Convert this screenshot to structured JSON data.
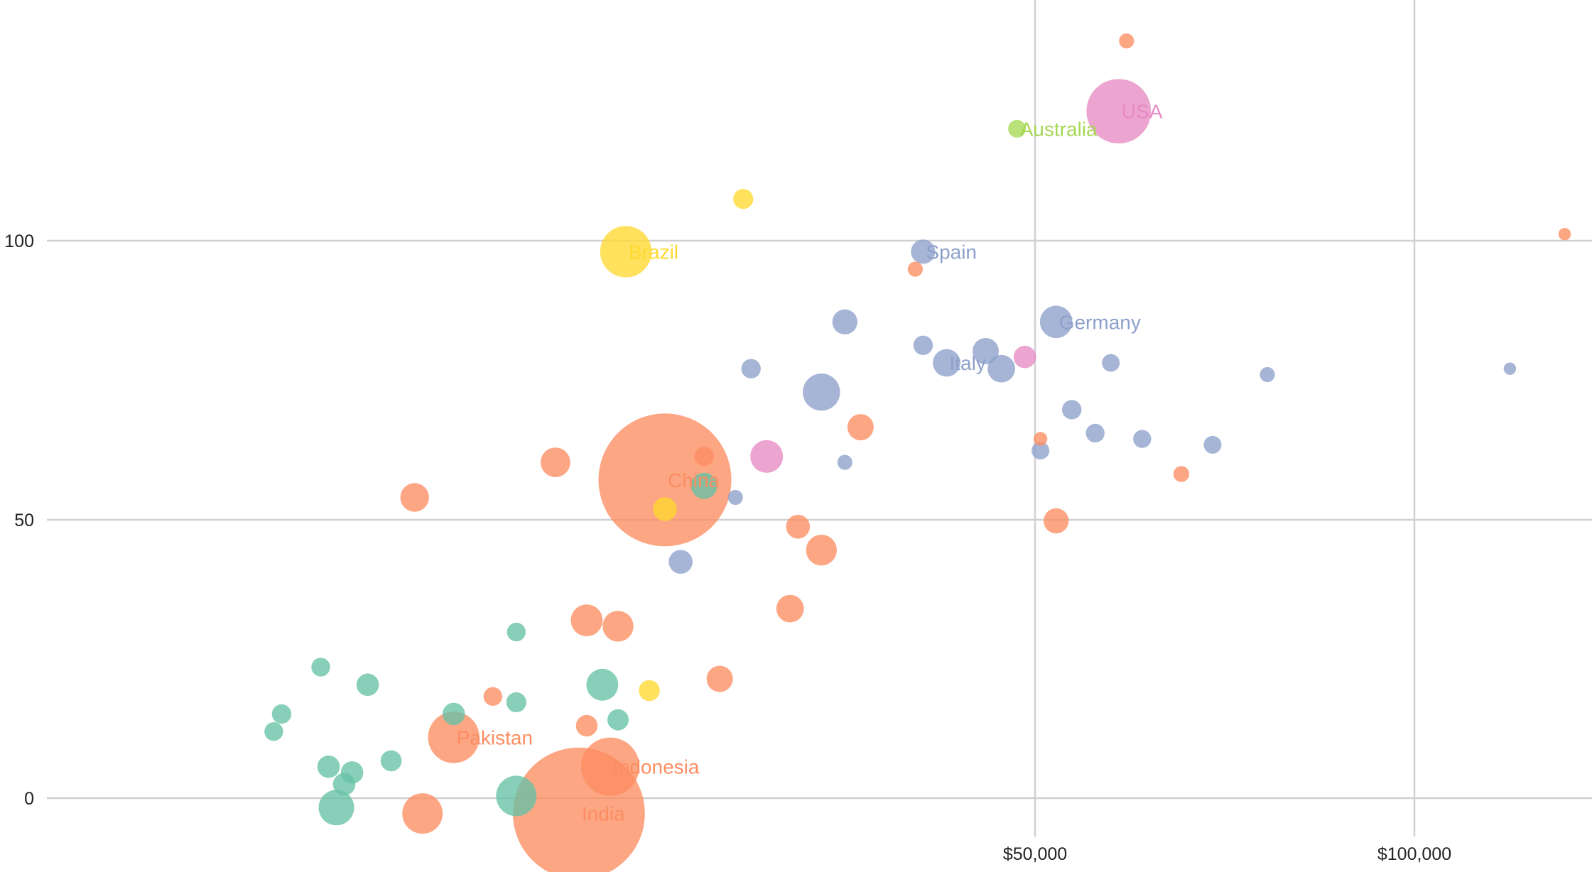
{
  "chart_data": {
    "type": "scatter",
    "x_tick_labels": [
      "$50,000",
      "$100,000"
    ],
    "y_tick_labels": [
      "0",
      "50",
      "100"
    ],
    "x_ticks": [
      50000,
      100000
    ],
    "y_ticks": [
      0,
      50,
      100
    ],
    "xlim": [
      -82000,
      121500
    ],
    "ylim": [
      -6,
      143
    ],
    "grid": true,
    "colors": {
      "africa": "#66c2a5",
      "asia": "#fc8d62",
      "europe": "#8da0cb",
      "americas": "#e78ac3",
      "oceania": "#a6d854",
      "latam": "#ffd92f"
    },
    "points": [
      {
        "x": -8000,
        "y": 4,
        "s": 1380,
        "c": "asia",
        "label": "India"
      },
      {
        "x": 3000,
        "y": 61,
        "s": 1400,
        "c": "asia",
        "label": "China"
      },
      {
        "x": 61000,
        "y": 124,
        "s": 330,
        "c": "americas",
        "label": "USA"
      },
      {
        "x": -24000,
        "y": 17,
        "s": 210,
        "c": "asia",
        "label": "Pakistan"
      },
      {
        "x": -4000,
        "y": 12,
        "s": 270,
        "c": "asia",
        "label": "Indonesia"
      },
      {
        "x": -2000,
        "y": 100,
        "s": 210,
        "c": "latam",
        "label": "Brazil"
      },
      {
        "x": 48000,
        "y": 121,
        "s": 25,
        "c": "oceania",
        "label": "Australia"
      },
      {
        "x": 36000,
        "y": 100,
        "s": 47,
        "c": "europe",
        "label": "Spain"
      },
      {
        "x": 53000,
        "y": 88,
        "s": 83,
        "c": "europe",
        "label": "Germany"
      },
      {
        "x": 39000,
        "y": 81,
        "s": 60,
        "c": "europe",
        "label": "Italy"
      },
      {
        "x": -16000,
        "y": 7,
        "s": 130,
        "c": "africa"
      },
      {
        "x": -28000,
        "y": 4,
        "s": 130,
        "c": "asia"
      },
      {
        "x": -39000,
        "y": 5,
        "s": 100,
        "c": "africa"
      },
      {
        "x": -5000,
        "y": 26,
        "s": 80,
        "c": "africa"
      },
      {
        "x": -7000,
        "y": 37,
        "s": 80,
        "c": "asia"
      },
      {
        "x": -3000,
        "y": 36,
        "s": 75,
        "c": "asia"
      },
      {
        "x": -11000,
        "y": 64,
        "s": 70,
        "c": "asia"
      },
      {
        "x": -29000,
        "y": 58,
        "s": 65,
        "c": "asia"
      },
      {
        "x": 28000,
        "y": 70,
        "s": 55,
        "c": "asia"
      },
      {
        "x": 23000,
        "y": 49,
        "s": 75,
        "c": "asia"
      },
      {
        "x": 19000,
        "y": 39,
        "s": 60,
        "c": "asia"
      },
      {
        "x": 10000,
        "y": 27,
        "s": 55,
        "c": "asia"
      },
      {
        "x": 20000,
        "y": 53,
        "s": 45,
        "c": "asia"
      },
      {
        "x": 53000,
        "y": 54,
        "s": 50,
        "c": "asia"
      },
      {
        "x": 16000,
        "y": 65,
        "s": 85,
        "c": "americas"
      },
      {
        "x": 23000,
        "y": 76,
        "s": 110,
        "c": "europe"
      },
      {
        "x": 26000,
        "y": 88,
        "s": 50,
        "c": "europe"
      },
      {
        "x": 46000,
        "y": 80,
        "s": 60,
        "c": "europe"
      },
      {
        "x": 44000,
        "y": 83,
        "s": 55,
        "c": "europe"
      },
      {
        "x": 49000,
        "y": 82,
        "s": 40,
        "c": "americas"
      },
      {
        "x": 36000,
        "y": 84,
        "s": 30,
        "c": "europe"
      },
      {
        "x": 13000,
        "y": 109,
        "s": 32,
        "c": "latam"
      },
      {
        "x": 8000,
        "y": 60,
        "s": 55,
        "c": "africa"
      },
      {
        "x": 3000,
        "y": 56,
        "s": 45,
        "c": "latam"
      },
      {
        "x": 5000,
        "y": 47,
        "s": 45,
        "c": "europe"
      },
      {
        "x": -35000,
        "y": 26,
        "s": 40,
        "c": "africa"
      },
      {
        "x": -40000,
        "y": 12,
        "s": 40,
        "c": "africa"
      },
      {
        "x": -37000,
        "y": 11,
        "s": 40,
        "c": "africa"
      },
      {
        "x": -38000,
        "y": 9,
        "s": 40,
        "c": "africa"
      },
      {
        "x": -32000,
        "y": 13,
        "s": 35,
        "c": "africa"
      },
      {
        "x": -24000,
        "y": 21,
        "s": 40,
        "c": "africa"
      },
      {
        "x": -16000,
        "y": 23,
        "s": 32,
        "c": "africa"
      },
      {
        "x": -19000,
        "y": 24,
        "s": 28,
        "c": "asia"
      },
      {
        "x": -16000,
        "y": 35,
        "s": 28,
        "c": "africa"
      },
      {
        "x": -7000,
        "y": 19,
        "s": 37,
        "c": "asia"
      },
      {
        "x": -3000,
        "y": 20,
        "s": 36,
        "c": "africa"
      },
      {
        "x": 14000,
        "y": 80,
        "s": 30,
        "c": "europe"
      },
      {
        "x": 60000,
        "y": 81,
        "s": 25,
        "c": "europe"
      },
      {
        "x": 8000,
        "y": 65,
        "s": 30,
        "c": "asia"
      },
      {
        "x": 1000,
        "y": 25,
        "s": 35,
        "c": "latam"
      },
      {
        "x": -46000,
        "y": 21,
        "s": 30,
        "c": "africa"
      },
      {
        "x": -47000,
        "y": 18,
        "s": 28,
        "c": "africa"
      },
      {
        "x": -41000,
        "y": 29,
        "s": 28,
        "c": "africa"
      },
      {
        "x": 55000,
        "y": 73,
        "s": 30,
        "c": "europe"
      },
      {
        "x": 58000,
        "y": 69,
        "s": 28,
        "c": "europe"
      },
      {
        "x": 64000,
        "y": 68,
        "s": 26,
        "c": "europe"
      },
      {
        "x": 51000,
        "y": 66,
        "s": 25,
        "c": "europe"
      },
      {
        "x": 73000,
        "y": 67,
        "s": 25,
        "c": "europe"
      },
      {
        "x": 80000,
        "y": 79,
        "s": 18,
        "c": "europe"
      },
      {
        "x": 111000,
        "y": 80,
        "s": 12,
        "c": "europe"
      },
      {
        "x": 62000,
        "y": 136,
        "s": 18,
        "c": "asia"
      },
      {
        "x": 118000,
        "y": 103,
        "s": 12,
        "c": "asia"
      },
      {
        "x": 69000,
        "y": 62,
        "s": 20,
        "c": "asia"
      },
      {
        "x": 51000,
        "y": 68,
        "s": 15,
        "c": "asia"
      },
      {
        "x": 35000,
        "y": 97,
        "s": 18,
        "c": "asia"
      },
      {
        "x": 26000,
        "y": 64,
        "s": 18,
        "c": "europe"
      },
      {
        "x": 12000,
        "y": 58,
        "s": 18,
        "c": "europe"
      }
    ]
  }
}
